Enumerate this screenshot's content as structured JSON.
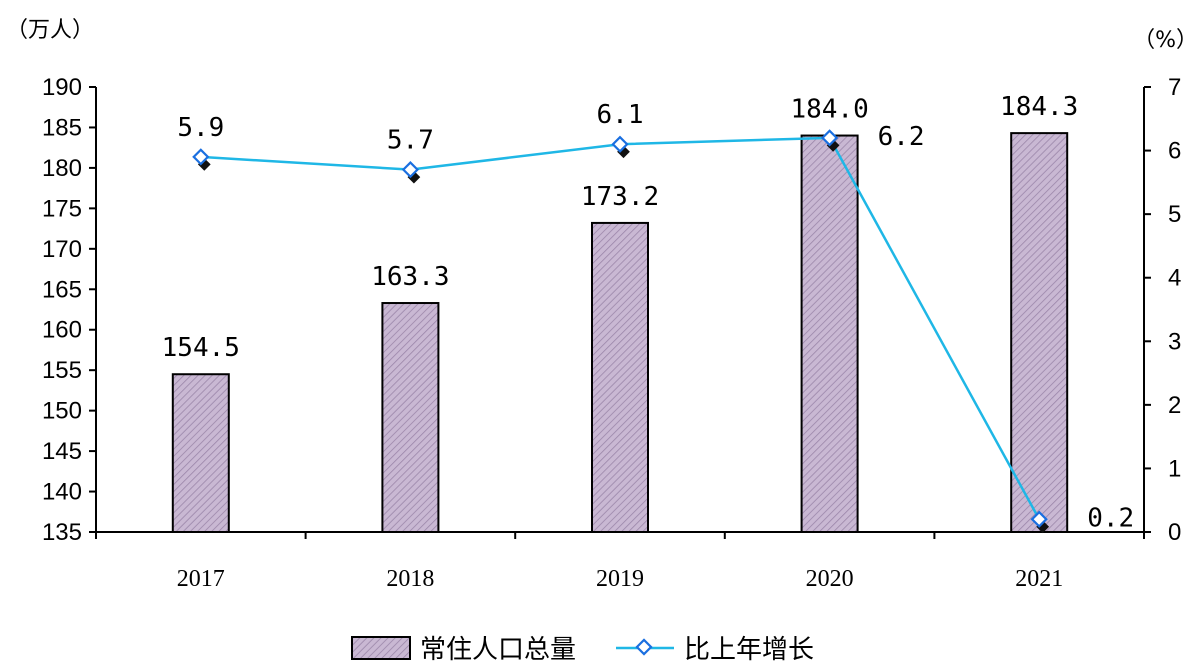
{
  "chart_data": {
    "type": "bar",
    "categories": [
      "2017",
      "2018",
      "2019",
      "2020",
      "2021"
    ],
    "y_left": {
      "unit": "（万人）",
      "ylim": [
        135,
        190
      ],
      "ticks": [
        135,
        140,
        145,
        150,
        155,
        160,
        165,
        170,
        175,
        180,
        185,
        190
      ]
    },
    "y_right": {
      "unit": "（%）",
      "ylim": [
        0,
        7
      ],
      "ticks": [
        0,
        1,
        2,
        3,
        4,
        5,
        6,
        7
      ]
    },
    "series": [
      {
        "name": "常住人口总量",
        "type": "bar",
        "axis": "left",
        "values": [
          154.5,
          163.3,
          173.2,
          184.0,
          184.3
        ],
        "labels": [
          "154.5",
          "163.3",
          "173.2",
          "184.0",
          "184.3"
        ],
        "color": "#b9a6c4"
      },
      {
        "name": "比上年增长",
        "type": "line",
        "axis": "right",
        "values": [
          5.9,
          5.7,
          6.1,
          6.2,
          0.2
        ],
        "labels": [
          "5.9",
          "5.7",
          "6.1",
          "6.2",
          "0.2"
        ],
        "color": "#1fb7e6"
      }
    ],
    "legend": {
      "position": "bottom"
    },
    "grid": false
  }
}
